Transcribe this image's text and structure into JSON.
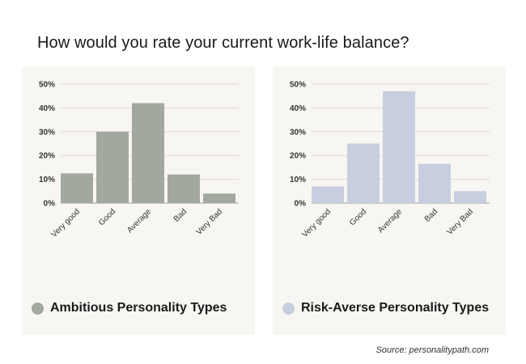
{
  "title": "How would you rate your current work-life balance?",
  "source": "Source: personalitypath.com",
  "chart_data": [
    {
      "type": "bar",
      "title": "",
      "xlabel": "",
      "ylabel": "",
      "categories": [
        "Very good",
        "Good",
        "Average",
        "Bad",
        "Very Bad"
      ],
      "values": [
        12.5,
        30,
        42,
        12,
        4
      ],
      "ylim": [
        0,
        50
      ],
      "yticks": [
        "0%",
        "10%",
        "20%",
        "30%",
        "40%",
        "50%"
      ],
      "grid": true,
      "legend_placement": "bottom-left",
      "series_name": "Ambitious Personality Types",
      "color": "#a3a89e"
    },
    {
      "type": "bar",
      "title": "",
      "xlabel": "",
      "ylabel": "",
      "categories": [
        "Very good",
        "Good",
        "Average",
        "Bad",
        "Very Bad"
      ],
      "values": [
        7,
        25,
        47,
        16.5,
        5
      ],
      "ylim": [
        0,
        50
      ],
      "yticks": [
        "0%",
        "10%",
        "20%",
        "30%",
        "40%",
        "50%"
      ],
      "grid": true,
      "legend_placement": "bottom-left",
      "series_name": "Risk-Averse Personality Types",
      "color": "#c6cedf"
    }
  ]
}
